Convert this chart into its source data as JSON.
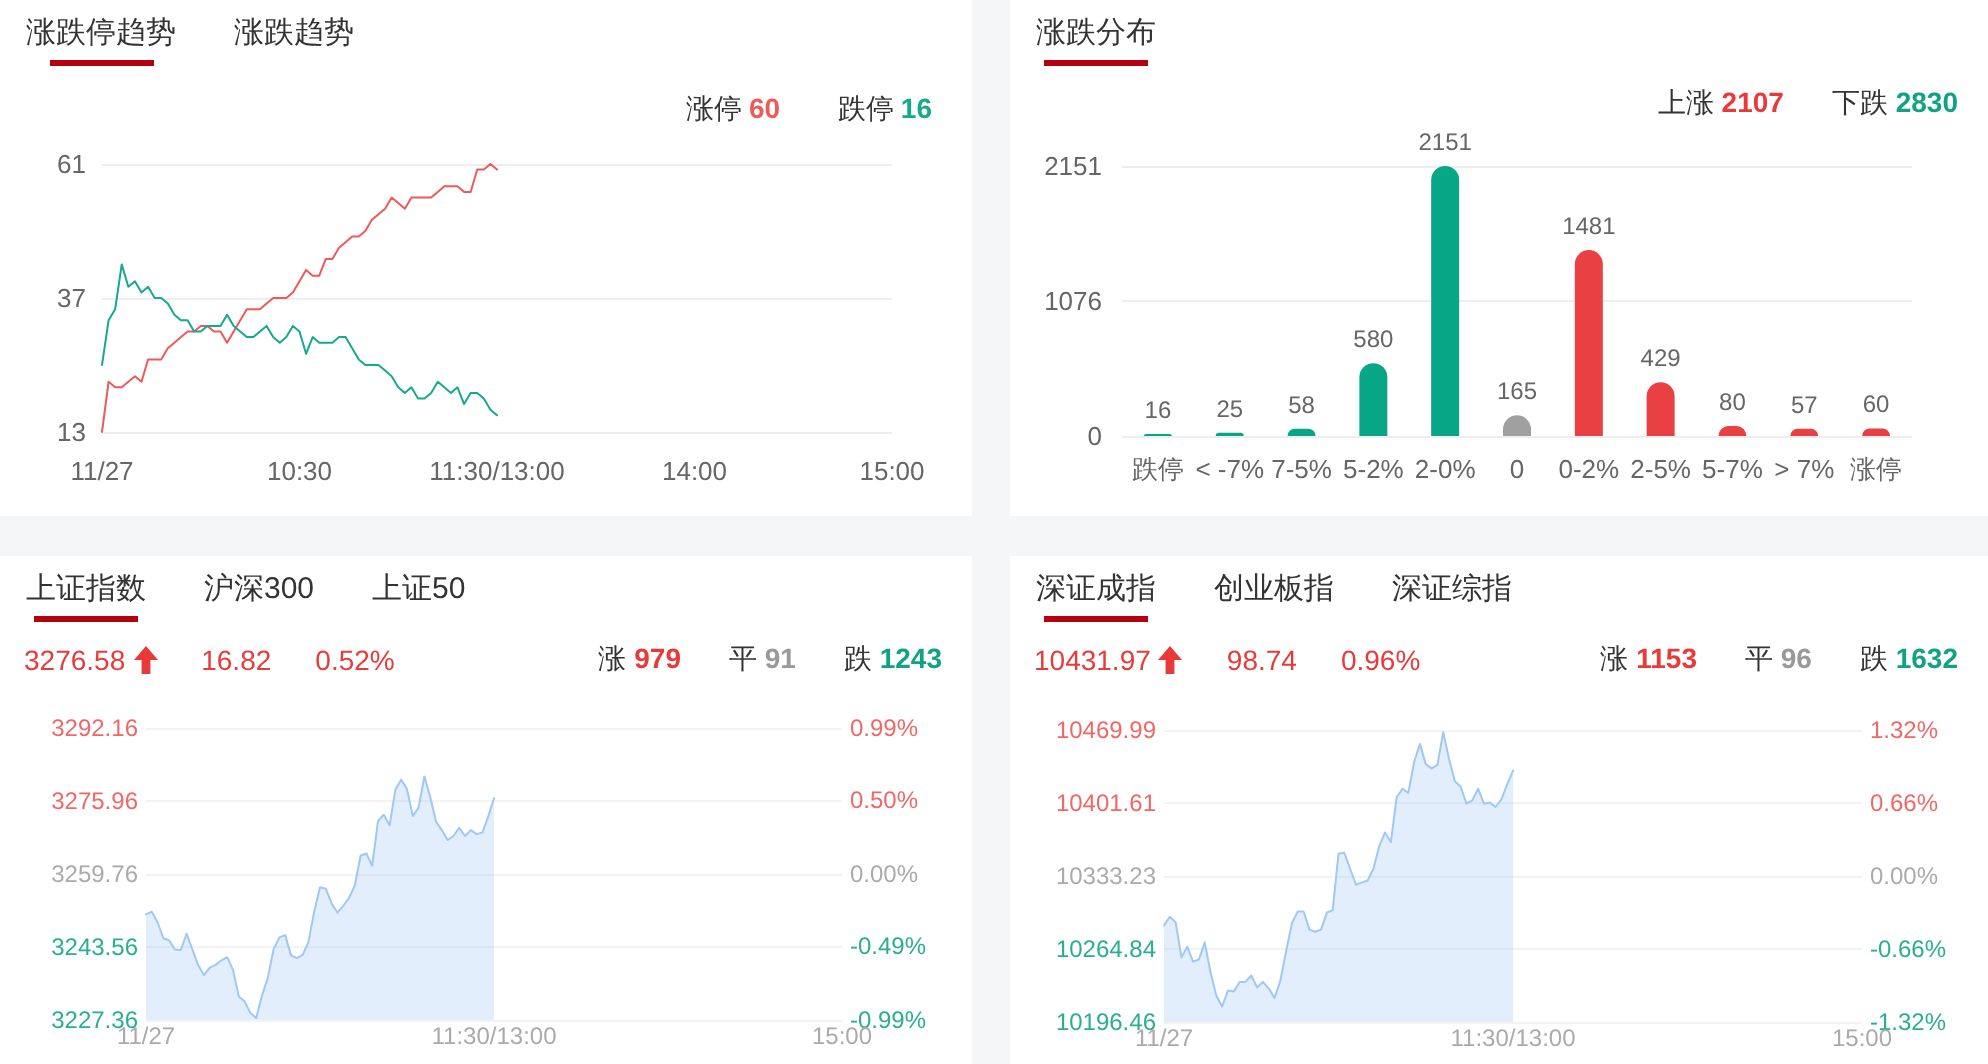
{
  "chart_data": [
    {
      "type": "line",
      "title": "涨跌停趋势",
      "annotations": [
        "涨跌趋势"
      ],
      "categories": [
        "11/27",
        null,
        null,
        null,
        null,
        null,
        null,
        null,
        null,
        null,
        null,
        null,
        null,
        null,
        null,
        null,
        null,
        null,
        null,
        null,
        null,
        null,
        null,
        null,
        null,
        null,
        null,
        null,
        null,
        null,
        "10:30",
        null,
        null,
        null,
        null,
        null,
        null,
        null,
        null,
        null,
        null,
        null,
        null,
        null,
        null,
        null,
        null,
        null,
        null,
        null,
        null,
        null,
        null,
        null,
        null,
        null,
        null,
        null,
        null,
        null,
        "11:30/13:00",
        null,
        null,
        null,
        null,
        null,
        null,
        null,
        null,
        null,
        null,
        null,
        null,
        null,
        null,
        null,
        null,
        null,
        null,
        null,
        null,
        null,
        null,
        null,
        null,
        null,
        null,
        null,
        null,
        null,
        "14:00",
        null,
        null,
        null,
        null,
        null,
        null,
        null,
        null,
        null,
        null,
        null,
        null,
        null,
        null,
        null,
        null,
        null,
        null,
        null,
        null,
        null,
        null,
        null,
        null,
        null,
        null,
        null,
        null,
        null,
        "15:00"
      ],
      "ylim": [
        13,
        61
      ],
      "yticks": [
        13,
        37,
        61
      ],
      "grid": "y",
      "legend": "top right",
      "series": [
        {
          "name": "涨停 60",
          "color": "#ee5a5a",
          "values": [
            13,
            22,
            21,
            21,
            22,
            23,
            22,
            26,
            26,
            26,
            28,
            29,
            30,
            31,
            31,
            32,
            32,
            31,
            31,
            29,
            31,
            33,
            35,
            35,
            35,
            36,
            37,
            37,
            37,
            38,
            40,
            42,
            41,
            41,
            44,
            44,
            46,
            47,
            48,
            48,
            49,
            51,
            52,
            53,
            55,
            54,
            53,
            55,
            55,
            55,
            55,
            56,
            57,
            57,
            57,
            56,
            56,
            60,
            60,
            61,
            60,
            null,
            null,
            null,
            null,
            null,
            null,
            null,
            null,
            null,
            null,
            null,
            null,
            null,
            null,
            null,
            null,
            null,
            null,
            null,
            null,
            null,
            null,
            null,
            null,
            null,
            null,
            null,
            null,
            null,
            null,
            null,
            null,
            null,
            null,
            null,
            null,
            null,
            null,
            null,
            null,
            null,
            null,
            null,
            null,
            null,
            null,
            null,
            null,
            null,
            null,
            null,
            null,
            null,
            null,
            null,
            null,
            null,
            null,
            null,
            null
          ]
        },
        {
          "name": "跌停 16",
          "color": "#17a98b",
          "values": [
            25,
            33,
            35,
            43,
            39,
            40,
            38,
            39,
            37,
            37,
            36,
            34,
            33,
            33,
            31,
            31,
            32,
            32,
            32,
            34,
            32,
            31,
            30,
            30,
            31,
            32,
            30,
            29,
            30,
            32,
            31,
            27,
            30,
            29,
            29,
            29,
            30,
            30,
            28,
            26,
            25,
            25,
            25,
            24,
            23,
            21,
            20,
            21,
            19,
            19,
            20,
            22,
            21,
            20,
            21,
            18,
            20,
            20,
            19,
            17,
            16,
            null,
            null,
            null,
            null,
            null,
            null,
            null,
            null,
            null,
            null,
            null,
            null,
            null,
            null,
            null,
            null,
            null,
            null,
            null,
            null,
            null,
            null,
            null,
            null,
            null,
            null,
            null,
            null,
            null,
            null,
            null,
            null,
            null,
            null,
            null,
            null,
            null,
            null,
            null,
            null,
            null,
            null,
            null,
            null,
            null,
            null,
            null,
            null,
            null,
            null,
            null,
            null,
            null,
            null,
            null,
            null,
            null,
            null,
            null,
            null
          ]
        }
      ]
    },
    {
      "type": "bar",
      "title": "涨跌分布",
      "annotations": [
        "上涨 2107",
        "下跌 2830"
      ],
      "categories": [
        "跌停",
        "< -7%",
        "7-5%",
        "5-2%",
        "2-0%",
        "0",
        "0-2%",
        "2-5%",
        "5-7%",
        "> 7%",
        "涨停"
      ],
      "values": [
        16,
        25,
        58,
        580,
        2151,
        165,
        1481,
        429,
        80,
        57,
        60
      ],
      "colors": [
        "#07a687",
        "#07a687",
        "#07a687",
        "#07a687",
        "#07a687",
        "#a0a0a0",
        "#e94141",
        "#e94141",
        "#e94141",
        "#e94141",
        "#e94141"
      ],
      "ylim": [
        0,
        2151
      ],
      "yticks": [
        0,
        1076,
        2151
      ],
      "grid": "y",
      "data_labels": true
    },
    {
      "type": "area",
      "title": "上证指数",
      "annotations": [
        "沪深300",
        "上证50",
        "3276.58",
        "16.82",
        "0.52%",
        "涨 979",
        "平 91",
        "跌 1243"
      ],
      "color": "#9fc8f5",
      "categories": [
        "11/27",
        null,
        null,
        null,
        null,
        null,
        null,
        null,
        null,
        null,
        null,
        null,
        null,
        null,
        null,
        null,
        null,
        null,
        null,
        null,
        null,
        null,
        null,
        null,
        null,
        null,
        null,
        null,
        null,
        null,
        null,
        null,
        null,
        null,
        null,
        null,
        null,
        null,
        null,
        null,
        null,
        null,
        null,
        null,
        null,
        null,
        null,
        null,
        null,
        null,
        null,
        null,
        null,
        null,
        null,
        null,
        null,
        null,
        null,
        null,
        "11:30/13:00",
        null,
        null,
        null,
        null,
        null,
        null,
        null,
        null,
        null,
        null,
        null,
        null,
        null,
        null,
        null,
        null,
        null,
        null,
        null,
        null,
        null,
        null,
        null,
        null,
        null,
        null,
        null,
        null,
        null,
        null,
        null,
        null,
        null,
        null,
        null,
        null,
        null,
        null,
        null,
        null,
        null,
        null,
        null,
        null,
        null,
        null,
        null,
        null,
        null,
        null,
        null,
        null,
        null,
        null,
        null,
        null,
        null,
        null,
        null,
        "15:00"
      ],
      "ylim": [
        3227.36,
        3292.16
      ],
      "yticks": [
        3227.36,
        3243.56,
        3259.76,
        3275.96,
        3292.16
      ],
      "y2lim": [
        -0.99,
        0.99
      ],
      "y2ticks": [
        {
          "value": -0.99,
          "label": "-0.99%"
        },
        {
          "value": -0.49,
          "label": "-0.49%"
        },
        {
          "value": 0,
          "label": "0.00%"
        },
        {
          "value": 0.5,
          "label": "0.50%"
        },
        {
          "value": 0.99,
          "label": "0.99%"
        }
      ],
      "grid": "y",
      "values": [
        3250.8,
        3251.4,
        3249.0,
        3245.5,
        3245.0,
        3243.0,
        3242.9,
        3246.5,
        3243.0,
        3239.5,
        3237.3,
        3239.0,
        3239.6,
        3240.6,
        3241.3,
        3238.5,
        3232.6,
        3231.5,
        3228.9,
        3227.8,
        3232.8,
        3236.7,
        3243.1,
        3245.7,
        3246.2,
        3241.7,
        3241.1,
        3241.8,
        3244.6,
        3251.4,
        3256.8,
        3256.5,
        3253.2,
        3251.2,
        3252.7,
        3254.4,
        3257.2,
        3263.8,
        3264.3,
        3261.6,
        3271.5,
        3272.9,
        3270.6,
        3278.5,
        3280.7,
        3278.6,
        3272.6,
        3274.5,
        3281.4,
        3276.9,
        3271.4,
        3269.5,
        3267.3,
        3268.2,
        3270.0,
        3268.2,
        3269.5,
        3268.6,
        3269.0,
        3272.5,
        3276.6,
        null,
        null,
        null,
        null,
        null,
        null,
        null,
        null,
        null,
        null,
        null,
        null,
        null,
        null,
        null,
        null,
        null,
        null,
        null,
        null,
        null,
        null,
        null,
        null,
        null,
        null,
        null,
        null,
        null,
        null,
        null,
        null,
        null,
        null,
        null,
        null,
        null,
        null,
        null,
        null,
        null,
        null,
        null,
        null,
        null,
        null,
        null,
        null,
        null,
        null,
        null,
        null,
        null,
        null,
        null,
        null,
        null,
        null,
        null,
        null
      ]
    },
    {
      "type": "area",
      "title": "深证成指",
      "annotations": [
        "创业板指",
        "深证综指",
        "10431.97",
        "98.74",
        "0.96%",
        "涨 1153",
        "平 96",
        "跌 1632"
      ],
      "color": "#9fc8f5",
      "categories": [
        "11/27",
        null,
        null,
        null,
        null,
        null,
        null,
        null,
        null,
        null,
        null,
        null,
        null,
        null,
        null,
        null,
        null,
        null,
        null,
        null,
        null,
        null,
        null,
        null,
        null,
        null,
        null,
        null,
        null,
        null,
        null,
        null,
        null,
        null,
        null,
        null,
        null,
        null,
        null,
        null,
        null,
        null,
        null,
        null,
        null,
        null,
        null,
        null,
        null,
        null,
        null,
        null,
        null,
        null,
        null,
        null,
        null,
        null,
        null,
        null,
        "11:30/13:00",
        null,
        null,
        null,
        null,
        null,
        null,
        null,
        null,
        null,
        null,
        null,
        null,
        null,
        null,
        null,
        null,
        null,
        null,
        null,
        null,
        null,
        null,
        null,
        null,
        null,
        null,
        null,
        null,
        null,
        null,
        null,
        null,
        null,
        null,
        null,
        null,
        null,
        null,
        null,
        null,
        null,
        null,
        null,
        null,
        null,
        null,
        null,
        null,
        null,
        null,
        null,
        null,
        null,
        null,
        null,
        null,
        null,
        null,
        null,
        "15:00"
      ],
      "ylim": [
        10196.46,
        10469.99
      ],
      "yticks": [
        10196.46,
        10264.84,
        10333.23,
        10401.61,
        10469.99
      ],
      "y2lim": [
        -1.32,
        1.32
      ],
      "y2ticks": [
        {
          "value": -1.32,
          "label": "-1.32%"
        },
        {
          "value": -0.66,
          "label": "-0.66%"
        },
        {
          "value": 0,
          "label": "0.00%"
        },
        {
          "value": 0.66,
          "label": "0.66%"
        },
        {
          "value": 1.32,
          "label": "1.32%"
        }
      ],
      "grid": "y",
      "values": [
        10287,
        10295,
        10290,
        10257,
        10267,
        10253,
        10255,
        10271,
        10243,
        10221,
        10211,
        10226,
        10225,
        10234,
        10234,
        10240,
        10229,
        10234,
        10228,
        10219,
        10235,
        10263,
        10289,
        10300,
        10300,
        10283,
        10281,
        10283,
        10299,
        10301,
        10354,
        10355,
        10340,
        10325,
        10327,
        10329,
        10340,
        10361,
        10374,
        10365,
        10407,
        10415,
        10411,
        10440,
        10457,
        10438,
        10434,
        10437,
        10468,
        10443,
        10422,
        10417,
        10401,
        10404,
        10415,
        10401,
        10402,
        10398,
        10405,
        10419,
        10432,
        null,
        null,
        null,
        null,
        null,
        null,
        null,
        null,
        null,
        null,
        null,
        null,
        null,
        null,
        null,
        null,
        null,
        null,
        null,
        null,
        null,
        null,
        null,
        null,
        null,
        null,
        null,
        null,
        null,
        null,
        null,
        null,
        null,
        null,
        null,
        null,
        null,
        null,
        null,
        null,
        null,
        null,
        null,
        null,
        null,
        null,
        null,
        null,
        null,
        null,
        null,
        null,
        null,
        null,
        null,
        null,
        null,
        null,
        null,
        null
      ]
    }
  ]
}
